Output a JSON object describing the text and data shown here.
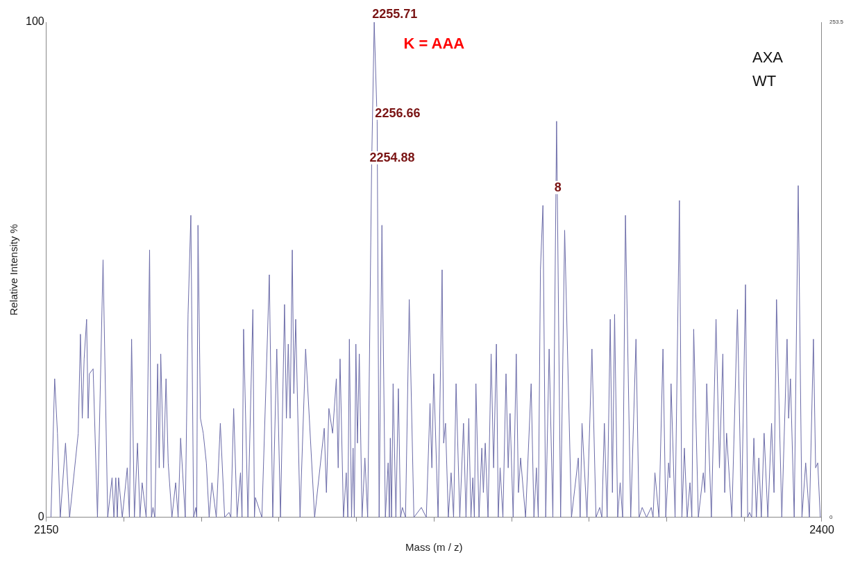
{
  "chart_data": {
    "type": "line",
    "xlabel": "Mass (m / z)",
    "ylabel": "Relative Intensity %",
    "annotations": [
      {
        "text": "2255.71",
        "x": 2255.71,
        "y": 100
      },
      {
        "text": "2256.66",
        "x": 2256.66,
        "y": 80
      },
      {
        "text": "2254.88",
        "x": 2254.88,
        "y": 71
      },
      {
        "text": "8",
        "x": 2314.5,
        "y": 65
      },
      "K = AAA",
      "AXA",
      "WT"
    ],
    "xlim": [
      2150,
      2400
    ],
    "xticks": [
      2150,
      {
        "value": 2175,
        "label": null
      },
      {
        "value": 2200,
        "label": null
      },
      {
        "value": 2225,
        "label": null
      },
      {
        "value": 2250,
        "label": null
      },
      {
        "value": 2275,
        "label": null
      },
      {
        "value": 2300,
        "label": null
      },
      {
        "value": 2325,
        "label": null
      },
      {
        "value": 2350,
        "label": null
      },
      {
        "value": 2375,
        "label": null
      },
      2400
    ],
    "ylim": [
      0,
      100
    ],
    "yticks": [
      0,
      100
    ],
    "y2lim": [
      0,
      253.5
    ],
    "y2ticks": [
      0,
      253.5
    ],
    "grid": false,
    "x": [
      2151.5,
      2152.7,
      2153.6,
      2154.5,
      2156.2,
      2157.5,
      2160.3,
      2161.0,
      2161.6,
      2162.2,
      2163.0,
      2163.5,
      2163.9,
      2165.1,
      2166.5,
      2168.3,
      2169.8,
      2171.2,
      2171.8,
      2172.4,
      2172.9,
      2173.3,
      2174.5,
      2176.1,
      2176.8,
      2177.5,
      2178.4,
      2179.4,
      2180.2,
      2180.9,
      2182.2,
      2183.3,
      2183.9,
      2184.4,
      2185.0,
      2185.9,
      2186.4,
      2186.9,
      2187.8,
      2188.6,
      2189.3,
      2190.5,
      2191.7,
      2192.5,
      2193.3,
      2194.8,
      2195.7,
      2196.6,
      2197.5,
      2198.2,
      2198.5,
      2198.9,
      2199.7,
      2200.6,
      2201.6,
      2202.5,
      2203.4,
      2204.8,
      2206.1,
      2207.5,
      2208.9,
      2209.5,
      2210.4,
      2211.5,
      2212.6,
      2213.1,
      2213.6,
      2215.0,
      2216.6,
      2217.1,
      2217.4,
      2219.5,
      2221.9,
      2223.0,
      2224.3,
      2225.5,
      2226.8,
      2227.4,
      2228.0,
      2228.6,
      2229.3,
      2229.8,
      2230.4,
      2231.8,
      2233.6,
      2236.5,
      2239.6,
      2240.3,
      2241.1,
      2242.3,
      2243.5,
      2244.1,
      2244.7,
      2245.8,
      2246.7,
      2247.2,
      2247.7,
      2248.4,
      2248.9,
      2249.3,
      2249.8,
      2250.3,
      2250.9,
      2251.8,
      2252.7,
      2253.6,
      2254.88,
      2255.71,
      2256.66,
      2257.3,
      2258.2,
      2259.3,
      2260.2,
      2260.6,
      2260.9,
      2261.3,
      2261.8,
      2262.7,
      2263.5,
      2264.2,
      2264.8,
      2265.8,
      2267.0,
      2268.5,
      2270.9,
      2272.5,
      2273.7,
      2274.3,
      2274.9,
      2276.3,
      2277.6,
      2278.1,
      2278.7,
      2279.6,
      2280.5,
      2281.3,
      2282.1,
      2283.3,
      2284.5,
      2285.3,
      2286.2,
      2286.9,
      2287.5,
      2288.0,
      2288.5,
      2289.5,
      2290.4,
      2290.9,
      2291.5,
      2292.4,
      2293.4,
      2294.2,
      2295.1,
      2295.7,
      2296.3,
      2297.2,
      2298.2,
      2298.9,
      2299.5,
      2300.5,
      2301.5,
      2302.2,
      2302.9,
      2304.5,
      2306.3,
      2307.2,
      2308.0,
      2308.6,
      2309.3,
      2310.1,
      2311.0,
      2312.1,
      2313.3,
      2314.5,
      2315.8,
      2317.1,
      2319.3,
      2321.5,
      2322.1,
      2322.7,
      2324.3,
      2325.9,
      2327.2,
      2328.4,
      2329.1,
      2329.9,
      2330.8,
      2331.8,
      2332.5,
      2333.2,
      2334.2,
      2335.0,
      2335.8,
      2336.7,
      2338.4,
      2340.1,
      2341.1,
      2342.1,
      2343.5,
      2345.0,
      2345.6,
      2346.2,
      2347.5,
      2348.8,
      2349.7,
      2350.6,
      2351.0,
      2351.4,
      2352.7,
      2354.1,
      2354.9,
      2355.7,
      2356.6,
      2357.5,
      2358.1,
      2358.7,
      2360.2,
      2361.8,
      2362.3,
      2362.9,
      2364.4,
      2365.9,
      2367.0,
      2368.1,
      2368.7,
      2369.3,
      2371.0,
      2372.8,
      2374.1,
      2375.4,
      2376.1,
      2376.7,
      2377.4,
      2378.1,
      2378.9,
      2379.7,
      2380.5,
      2381.4,
      2382.6,
      2383.8,
      2384.6,
      2385.4,
      2387.1,
      2388.8,
      2389.3,
      2389.9,
      2391.1,
      2392.4,
      2393.6,
      2394.8,
      2396.0,
      2397.3,
      2398.0,
      2398.7,
      2399.5
    ],
    "series": [
      {
        "color": "#6b6ba8",
        "values": [
          0,
          28,
          17,
          0,
          15,
          0,
          17,
          37,
          20,
          32,
          40,
          20,
          29,
          30,
          0,
          52,
          0,
          8,
          0,
          8,
          0,
          8,
          0,
          10,
          0,
          36,
          0,
          15,
          0,
          7,
          0,
          54,
          0,
          2,
          0,
          31,
          10,
          33,
          10,
          28,
          11,
          0,
          7,
          0,
          16,
          0,
          41,
          61,
          0,
          2,
          0,
          59,
          20,
          17,
          11,
          0,
          7,
          0,
          19,
          0,
          1,
          0,
          22,
          0,
          9,
          0,
          38,
          0,
          42,
          0,
          4,
          0,
          49,
          0,
          34,
          0,
          43,
          20,
          35,
          20,
          54,
          25,
          40,
          0,
          34,
          0,
          18,
          5,
          22,
          17,
          28,
          10,
          32,
          0,
          9,
          0,
          36,
          0,
          14,
          0,
          35,
          15,
          33,
          0,
          12,
          0,
          71,
          100,
          80,
          0,
          59,
          0,
          11,
          0,
          16,
          0,
          27,
          0,
          26,
          0,
          2,
          0,
          44,
          0,
          2,
          0,
          23,
          10,
          29,
          0,
          50,
          15,
          19,
          0,
          9,
          0,
          27,
          0,
          19,
          0,
          20,
          0,
          8,
          0,
          27,
          0,
          14,
          5,
          15,
          0,
          33,
          10,
          35,
          0,
          10,
          0,
          29,
          10,
          21,
          0,
          33,
          5,
          12,
          0,
          27,
          0,
          10,
          0,
          50,
          63,
          0,
          34,
          0,
          80,
          0,
          58,
          0,
          12,
          0,
          19,
          0,
          34,
          0,
          2,
          0,
          19,
          0,
          40,
          5,
          41,
          0,
          7,
          0,
          61,
          0,
          36,
          0,
          2,
          0,
          2,
          0,
          9,
          0,
          34,
          0,
          11,
          8,
          27,
          0,
          64,
          0,
          14,
          0,
          7,
          0,
          38,
          0,
          9,
          5,
          27,
          0,
          40,
          10,
          33,
          5,
          17,
          0,
          42,
          0,
          47,
          0,
          1,
          0,
          16,
          0,
          12,
          0,
          17,
          0,
          19,
          5,
          44,
          0,
          36,
          20,
          28,
          0,
          67,
          0,
          11,
          0,
          36,
          10,
          11,
          0
        ]
      }
    ]
  }
}
